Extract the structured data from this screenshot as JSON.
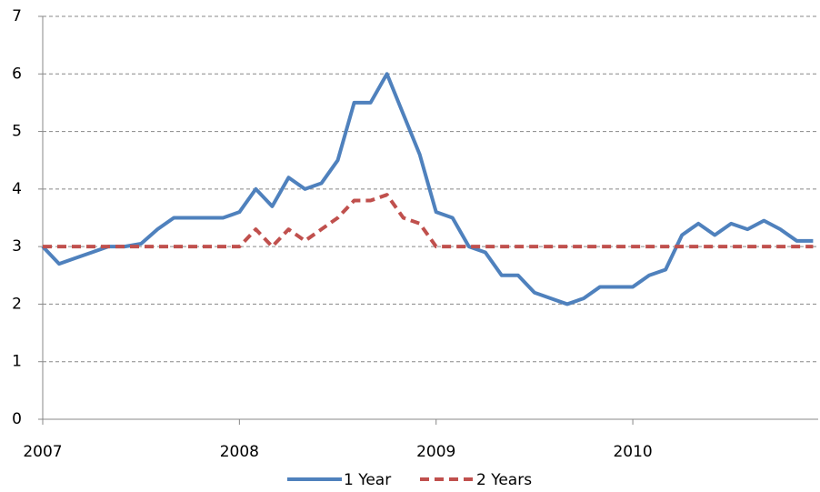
{
  "chart_data": {
    "type": "line",
    "categories": [
      "2007",
      null,
      null,
      null,
      null,
      null,
      null,
      null,
      null,
      null,
      null,
      null,
      "2008",
      null,
      null,
      null,
      null,
      null,
      null,
      null,
      null,
      null,
      null,
      null,
      "2009",
      null,
      null,
      null,
      null,
      null,
      null,
      null,
      null,
      null,
      null,
      null,
      "2010",
      null,
      null,
      null,
      null,
      null,
      null,
      null,
      null,
      null,
      null,
      null
    ],
    "series": [
      {
        "name": "1 Year",
        "color": "#4f81bd",
        "dash": false,
        "values": [
          3.0,
          2.7,
          2.8,
          2.9,
          3.0,
          3.0,
          3.05,
          3.3,
          3.5,
          3.5,
          3.5,
          3.5,
          3.6,
          4.0,
          3.7,
          4.2,
          4.0,
          4.1,
          4.5,
          5.5,
          5.5,
          6.0,
          5.3,
          4.6,
          3.6,
          3.5,
          3.0,
          2.9,
          2.5,
          2.5,
          2.2,
          2.1,
          2.0,
          2.1,
          2.3,
          2.3,
          2.3,
          2.5,
          2.6,
          3.2,
          3.4,
          3.2,
          3.4,
          3.3,
          3.45,
          3.3,
          3.1,
          3.1
        ]
      },
      {
        "name": "2 Years",
        "color": "#c0504d",
        "dash": true,
        "values": [
          3.0,
          3.0,
          3.0,
          3.0,
          3.0,
          3.0,
          3.0,
          3.0,
          3.0,
          3.0,
          3.0,
          3.0,
          3.0,
          3.3,
          3.0,
          3.3,
          3.1,
          3.3,
          3.5,
          3.8,
          3.8,
          3.9,
          3.5,
          3.4,
          3.0,
          3.0,
          3.0,
          3.0,
          3.0,
          3.0,
          3.0,
          3.0,
          3.0,
          3.0,
          3.0,
          3.0,
          3.0,
          3.0,
          3.0,
          3.0,
          3.0,
          3.0,
          3.0,
          3.0,
          3.0,
          3.0,
          3.0,
          3.0
        ]
      }
    ],
    "ylim": [
      0,
      7
    ],
    "yticks": [
      0,
      1,
      2,
      3,
      4,
      5,
      6,
      7
    ],
    "grid": true,
    "legend": "bottom"
  }
}
